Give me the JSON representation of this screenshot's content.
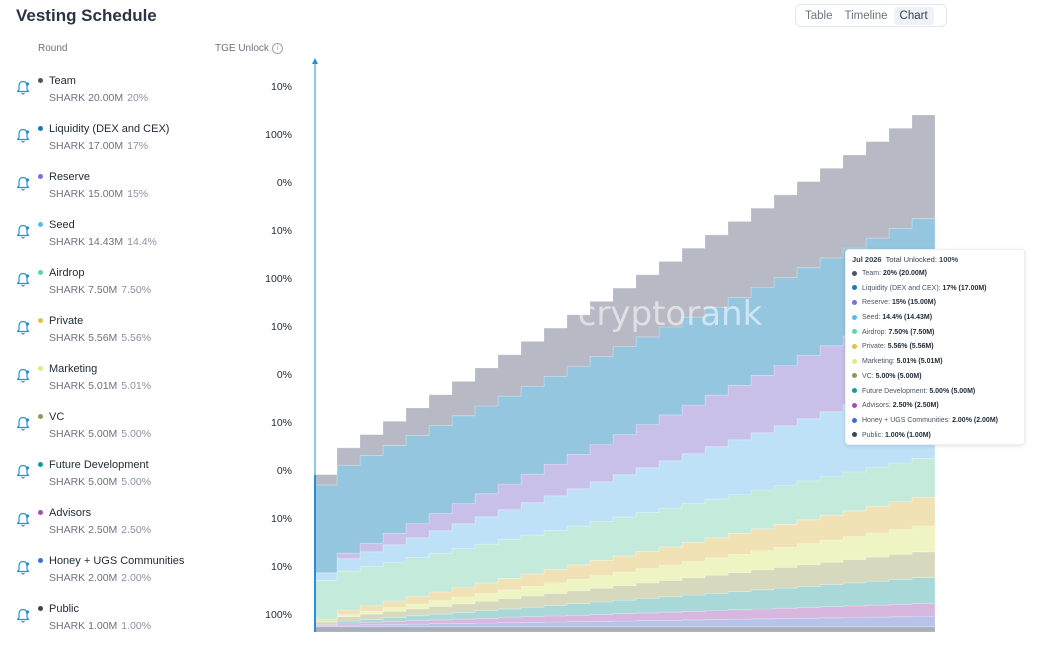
{
  "page_title": "Vesting Schedule",
  "tabs": [
    {
      "label": "Table",
      "active": false
    },
    {
      "label": "Timeline",
      "active": false
    },
    {
      "label": "Chart",
      "active": true
    }
  ],
  "columns": {
    "round": "Round",
    "tge": "TGE Unlock"
  },
  "watermark": "cryptorank",
  "rounds": [
    {
      "name": "Team",
      "amount": "SHARK 20.00M",
      "pct": "20%",
      "tge": "10%",
      "color": "#4b5563"
    },
    {
      "name": "Liquidity (DEX and CEX)",
      "amount": "SHARK 17.00M",
      "pct": "17%",
      "tge": "100%",
      "color": "#1f78b4"
    },
    {
      "name": "Reserve",
      "amount": "SHARK 15.00M",
      "pct": "15%",
      "tge": "0%",
      "color": "#7c6fd6"
    },
    {
      "name": "Seed",
      "amount": "SHARK 14.43M",
      "pct": "14.4%",
      "tge": "10%",
      "color": "#5bb9ee"
    },
    {
      "name": "Airdrop",
      "amount": "SHARK 7.50M",
      "pct": "7.50%",
      "tge": "100%",
      "color": "#58d6b0"
    },
    {
      "name": "Private",
      "amount": "SHARK 5.56M",
      "pct": "5.56%",
      "tge": "10%",
      "color": "#e8bd4f"
    },
    {
      "name": "Marketing",
      "amount": "SHARK 5.01M",
      "pct": "5.01%",
      "tge": "0%",
      "color": "#dfe98a"
    },
    {
      "name": "VC",
      "amount": "SHARK 5.00M",
      "pct": "5.00%",
      "tge": "10%",
      "color": "#8a9a5b"
    },
    {
      "name": "Future Development",
      "amount": "SHARK 5.00M",
      "pct": "5.00%",
      "tge": "0%",
      "color": "#179b9a"
    },
    {
      "name": "Advisors",
      "amount": "SHARK 2.50M",
      "pct": "2.50%",
      "tge": "10%",
      "color": "#a350b5"
    },
    {
      "name": "Honey + UGS Communities",
      "amount": "SHARK 2.00M",
      "pct": "2.00%",
      "tge": "10%",
      "color": "#3b6fd1"
    },
    {
      "name": "Public",
      "amount": "SHARK 1.00M",
      "pct": "1.00%",
      "tge": "100%",
      "color": "#3d4451"
    }
  ],
  "tooltip": {
    "date": "Jul 2026",
    "total_label": "Total Unlocked:",
    "total_value": "100%",
    "items": [
      {
        "name": "Team:",
        "value": "20% (20.00M)",
        "color": "#4b5563"
      },
      {
        "name": "Liquidity (DEX and CEX):",
        "value": "17% (17.00M)",
        "color": "#1f78b4"
      },
      {
        "name": "Reserve:",
        "value": "15% (15.00M)",
        "color": "#7c6fd6"
      },
      {
        "name": "Seed:",
        "value": "14.4% (14.43M)",
        "color": "#5bb9ee"
      },
      {
        "name": "Airdrop:",
        "value": "7.50% (7.50M)",
        "color": "#58d6b0"
      },
      {
        "name": "Private:",
        "value": "5.56% (5.56M)",
        "color": "#e8bd4f"
      },
      {
        "name": "Marketing:",
        "value": "5.01% (5.01M)",
        "color": "#dfe98a"
      },
      {
        "name": "VC:",
        "value": "5.00% (5.00M)",
        "color": "#8a9a5b"
      },
      {
        "name": "Future Development:",
        "value": "5.00% (5.00M)",
        "color": "#179b9a"
      },
      {
        "name": "Advisors:",
        "value": "2.50% (2.50M)",
        "color": "#a350b5"
      },
      {
        "name": "Honey + UGS Communities:",
        "value": "2.00% (2.00M)",
        "color": "#3b6fd1"
      },
      {
        "name": "Public:",
        "value": "1.00% (1.00M)",
        "color": "#3d4451"
      }
    ]
  },
  "chart_data": {
    "type": "area",
    "stacked": true,
    "step": true,
    "periods": 27,
    "unit": "M",
    "series": [
      {
        "name": "Public",
        "total": 1.0,
        "tge_pct": 100,
        "color": "#a9aeb8"
      },
      {
        "name": "Honey + UGS Communities",
        "total": 2.0,
        "tge_pct": 10,
        "color": "#b8c3ea"
      },
      {
        "name": "Advisors",
        "total": 2.5,
        "tge_pct": 10,
        "color": "#d7b6df"
      },
      {
        "name": "Future Development",
        "total": 5.0,
        "tge_pct": 0,
        "color": "#a8d9d8"
      },
      {
        "name": "VC",
        "total": 5.0,
        "tge_pct": 10,
        "color": "#d6d9bd"
      },
      {
        "name": "Marketing",
        "total": 5.01,
        "tge_pct": 0,
        "color": "#eef4c2"
      },
      {
        "name": "Private",
        "total": 5.56,
        "tge_pct": 10,
        "color": "#f1e2b6"
      },
      {
        "name": "Airdrop",
        "total": 7.5,
        "tge_pct": 100,
        "color": "#c3eadb"
      },
      {
        "name": "Seed",
        "total": 14.43,
        "tge_pct": 10,
        "color": "#bfe1f8"
      },
      {
        "name": "Reserve",
        "total": 15.0,
        "tge_pct": 0,
        "color": "#c9c0ea"
      },
      {
        "name": "Liquidity (DEX and CEX)",
        "total": 17.0,
        "tge_pct": 100,
        "color": "#94c6e0"
      },
      {
        "name": "Team",
        "total": 20.0,
        "tge_pct": 10,
        "color": "#b7bac4"
      }
    ]
  }
}
